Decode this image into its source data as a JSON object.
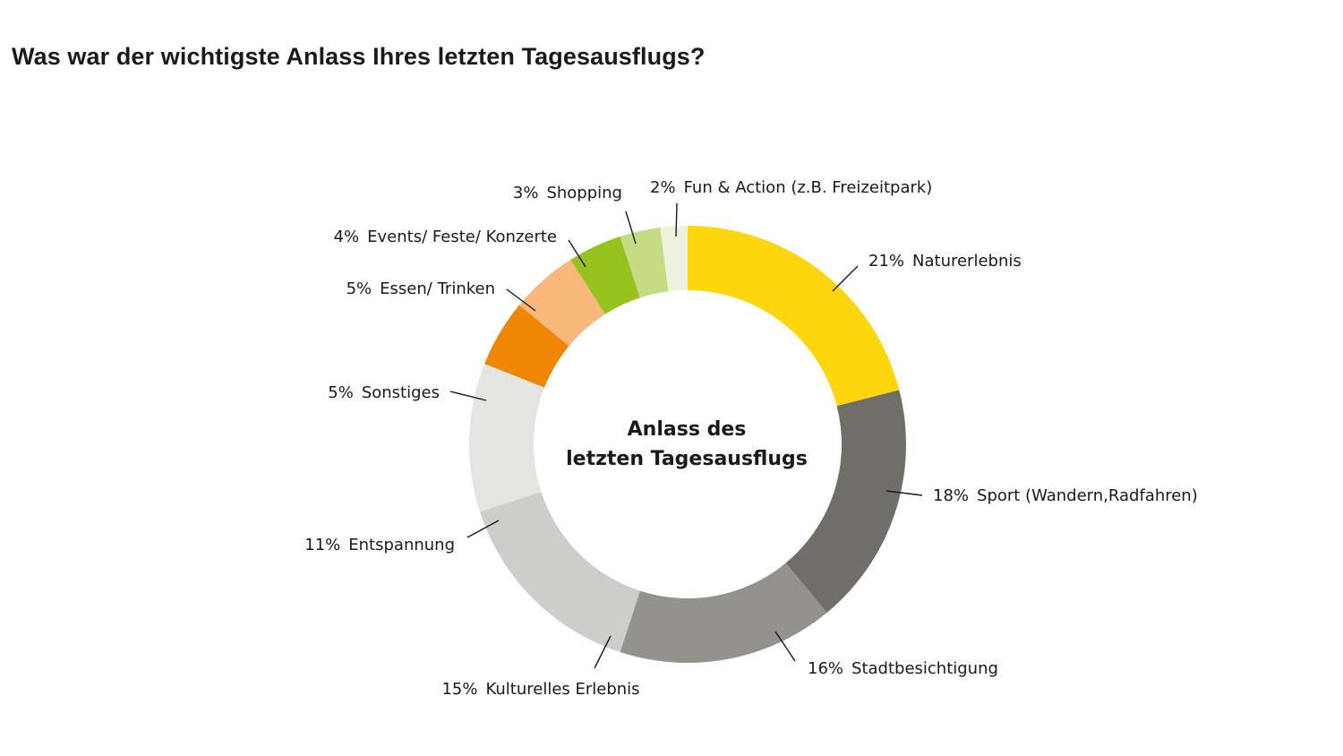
{
  "title": "Was war der wichtigste Anlass Ihres letzten Tagesausflugs?",
  "chart_data": {
    "type": "pie",
    "donut": true,
    "center_label": [
      "Anlass des",
      "letzten Tagesausflugs"
    ],
    "slices": [
      {
        "label": "Naturerlebnis",
        "value": 21,
        "pct_text": "21%",
        "color": "#fdd60e"
      },
      {
        "label": "Sport (Wandern,Radfahren)",
        "value": 18,
        "pct_text": "18%",
        "color": "#706e68"
      },
      {
        "label": "Stadtbesichtigung",
        "value": 16,
        "pct_text": "16%",
        "color": "#93928d"
      },
      {
        "label": "Kulturelles Erlebnis",
        "value": 15,
        "pct_text": "15%",
        "color": "#cdcdcb"
      },
      {
        "label": "Entspannung",
        "value": 11,
        "pct_text": "11%",
        "color": "#e4e4e0"
      },
      {
        "label": "Sonstiges",
        "value": 5,
        "pct_text": "5%",
        "color": "#f08704"
      },
      {
        "label": "Essen/ Trinken",
        "value": 5,
        "pct_text": "5%",
        "color": "#f8b87a"
      },
      {
        "label": "Events/ Feste/ Konzerte",
        "value": 4,
        "pct_text": "4%",
        "color": "#96c11f"
      },
      {
        "label": "Shopping",
        "value": 3,
        "pct_text": "3%",
        "color": "#c5dc85"
      },
      {
        "label": "Fun & Action (z.B. Freizeitpark)",
        "value": 2,
        "pct_text": "2%",
        "color": "#eef2dc"
      }
    ]
  }
}
